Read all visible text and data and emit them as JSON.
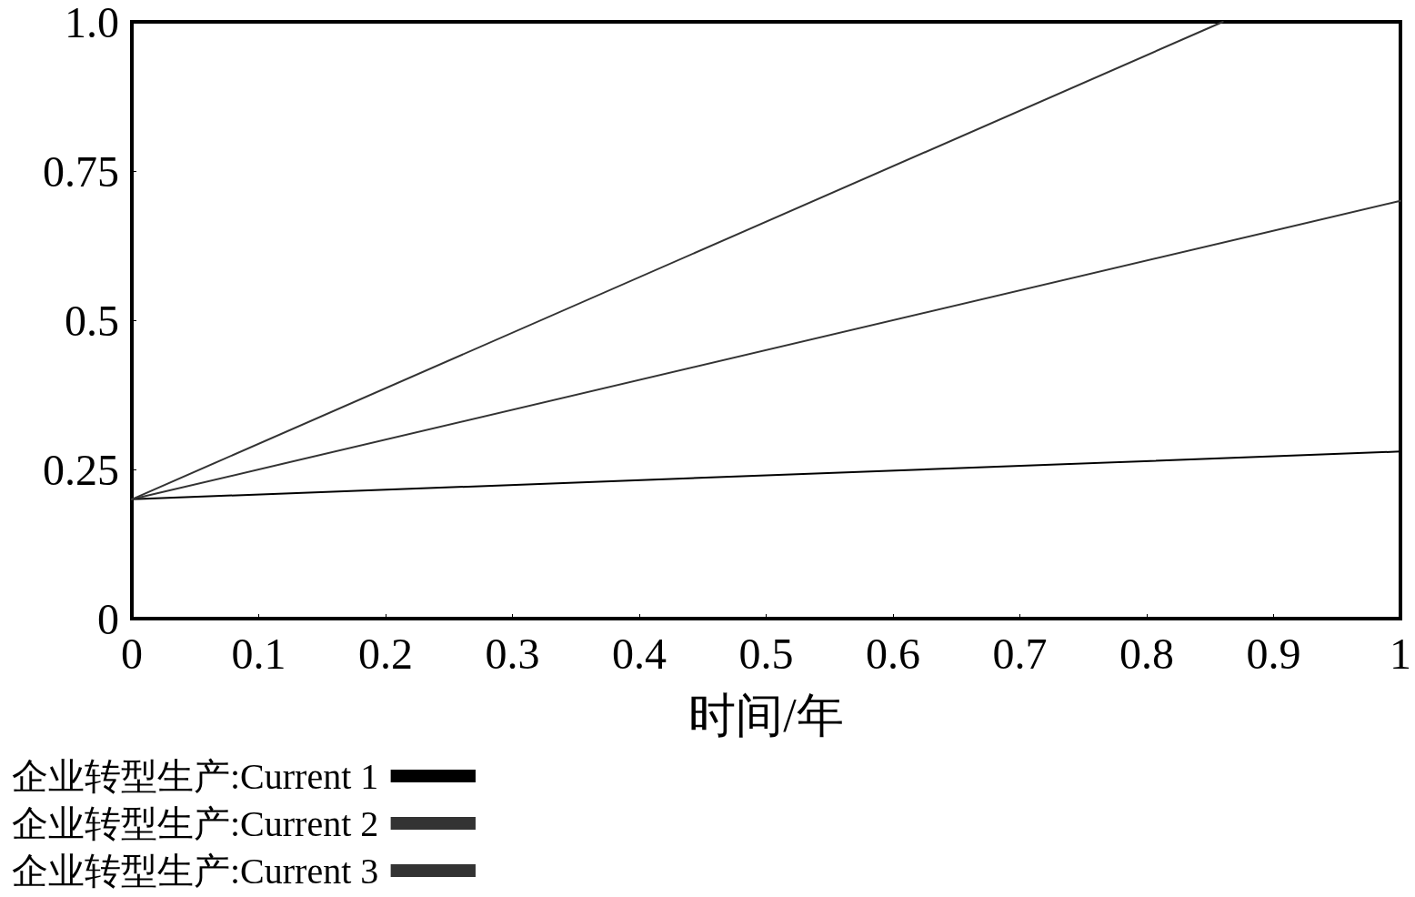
{
  "chart_data": {
    "type": "line",
    "xlabel": "时间/年",
    "xlim": [
      0,
      1
    ],
    "xticks": [
      0,
      0.1,
      0.2,
      0.3,
      0.4,
      0.5,
      0.6,
      0.7,
      0.8,
      0.9,
      1
    ],
    "ylim": [
      0,
      1
    ],
    "yticks": [
      0,
      0.25,
      0.5,
      0.75,
      {
        "value": 1,
        "label": "1.0"
      }
    ],
    "grid": false,
    "legend": "bottom",
    "series": [
      {
        "name": "企业转型生产:Current 1",
        "color": "#000000",
        "x": [
          0,
          1
        ],
        "values": [
          0.2,
          0.28
        ]
      },
      {
        "name": "企业转型生产:Current 2",
        "color": "#333333",
        "x": [
          0,
          1
        ],
        "values": [
          0.2,
          0.7
        ]
      },
      {
        "name": "企业转型生产:Current 3",
        "color": "#333333",
        "x": [
          0,
          0.86
        ],
        "values": [
          0.2,
          1.0
        ]
      }
    ]
  }
}
